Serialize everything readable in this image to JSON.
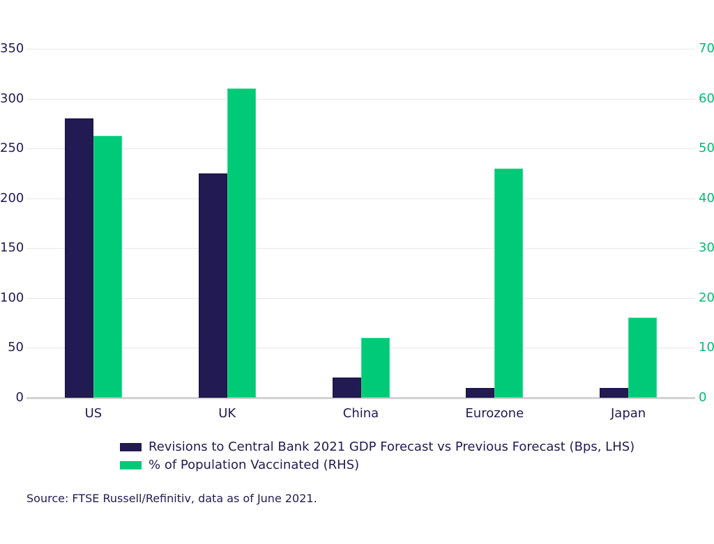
{
  "chart_data": {
    "type": "bar",
    "title": "",
    "categories": [
      "US",
      "UK",
      "China",
      "Eurozone",
      "Japan"
    ],
    "series": [
      {
        "name": "Revisions to Central Bank 2021 GDP Forecast vs Previous Forecast (Bps, LHS)",
        "axis": "left",
        "color": "#221a52",
        "border_color": "#15103f",
        "values": [
          280,
          225,
          20,
          10,
          10
        ]
      },
      {
        "name": "% of Population Vaccinated (RHS)",
        "axis": "right",
        "color": "#00ca77",
        "border_color": "#31db93",
        "values": [
          52.5,
          62,
          12,
          46,
          16
        ]
      }
    ],
    "left_axis": {
      "min": 0,
      "max": 350,
      "step": 50,
      "ticks": [
        0,
        50,
        100,
        150,
        200,
        250,
        300,
        350
      ],
      "label_color": "#221a52"
    },
    "right_axis": {
      "min": 0,
      "max": 70,
      "step": 10,
      "ticks": [
        0,
        10,
        20,
        30,
        40,
        50,
        60,
        70
      ],
      "label_color": "#00bd73"
    },
    "grid": true,
    "legend_position": "bottom-left"
  },
  "source": {
    "text": "Source: FTSE Russell/Refinitiv, data as of June 2021."
  }
}
